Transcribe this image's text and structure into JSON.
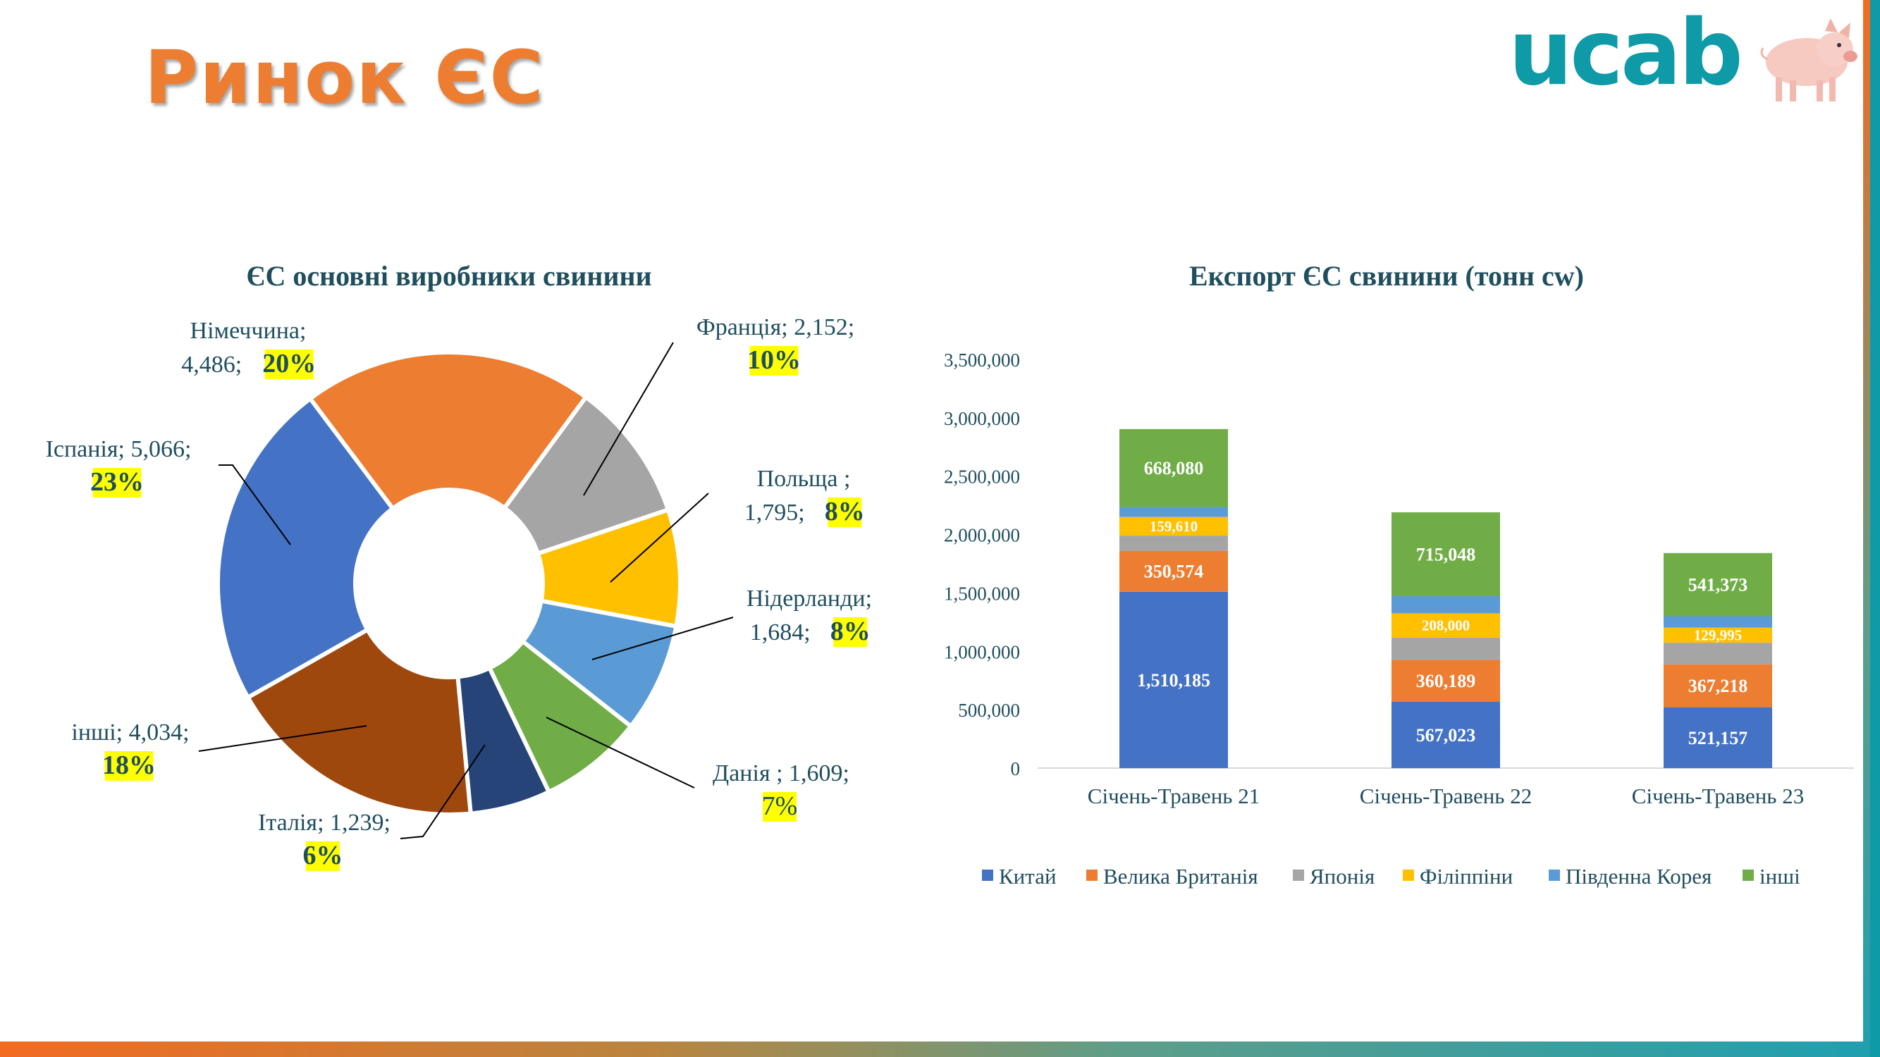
{
  "slide": {
    "title": "Ринок ЄС",
    "logo_text": "ucab",
    "logo_icon": "pig-icon"
  },
  "colors": {
    "accent": "#ED7D31",
    "teal": "#0E9AA7",
    "highlight": "#FFFF00",
    "text": "#1F4E5F"
  },
  "chart_data": [
    {
      "type": "pie",
      "title": "ЄС основні виробники свинини",
      "slices": [
        {
          "name": "Німеччина",
          "value_text": "4,486",
          "value": 4486,
          "pct": "20%",
          "color": "#ED7D31"
        },
        {
          "name": "Франція",
          "value_text": "2,152",
          "value": 2152,
          "pct": "10%",
          "color": "#A5A5A5"
        },
        {
          "name": "Польща ",
          "value_text": "1,795",
          "value": 1795,
          "pct": "8%",
          "color": "#FFC000"
        },
        {
          "name": "Нідерланди",
          "value_text": "1,684",
          "value": 1684,
          "pct": "8%",
          "color": "#5B9BD5"
        },
        {
          "name": "Данія ",
          "value_text": "1,609",
          "value": 1609,
          "pct": "7%",
          "color": "#70AD47"
        },
        {
          "name": "Італія",
          "value_text": "1,239",
          "value": 1239,
          "pct": "6%",
          "color": "#264478"
        },
        {
          "name": "інші",
          "value_text": "4,034",
          "value": 4034,
          "pct": "18%",
          "color": "#9E480E"
        },
        {
          "name": "Іспанія",
          "value_text": "5,066",
          "value": 5066,
          "pct": "23%",
          "color": "#4472C4"
        }
      ],
      "label_lines": [
        [
          "Німеччина;",
          "4,486;"
        ],
        [
          "Франція; 2,152;",
          ""
        ],
        [
          "Польща ;",
          "1,795;"
        ],
        [
          "Нідерланди;",
          "1,684;"
        ],
        [
          "Данія ; 1,609;",
          ""
        ],
        [
          "Італія; 1,239;",
          ""
        ],
        [
          "інші; 4,034;",
          ""
        ],
        [
          "Іспанія; 5,066;",
          ""
        ]
      ]
    },
    {
      "type": "bar",
      "stacked": true,
      "title": "Експорт ЄС свинини (тонн cw)",
      "categories": [
        "Січень-Травень 21",
        "Січень-Травень 22",
        "Січень-Травень 23"
      ],
      "ylim": [
        0,
        3500000
      ],
      "yticks": [
        "0",
        "500,000",
        "1,000,000",
        "1,500,000",
        "2,000,000",
        "2,500,000",
        "3,000,000",
        "3,500,000"
      ],
      "legend_position": "bottom",
      "series": [
        {
          "name": "Китай",
          "color": "#4472C4",
          "values": [
            1510185,
            567023,
            521157
          ],
          "labels": [
            "1,510,185",
            "567,023",
            "521,157"
          ]
        },
        {
          "name": "Велика Британія",
          "color": "#ED7D31",
          "values": [
            350574,
            360189,
            367218
          ],
          "labels": [
            "350,574",
            "360,189",
            "367,218"
          ]
        },
        {
          "name": "Японія",
          "color": "#A5A5A5",
          "values": [
            130000,
            190000,
            185000
          ],
          "labels": [
            "",
            "",
            ""
          ]
        },
        {
          "name": "Філіппіни",
          "color": "#FFC000",
          "values": [
            159610,
            208000,
            129995
          ],
          "labels": [
            "159,610",
            "208,000",
            "129,995"
          ]
        },
        {
          "name": "Південна Корея",
          "color": "#5B9BD5",
          "values": [
            85000,
            150000,
            97000
          ],
          "labels": [
            "",
            "",
            ""
          ]
        },
        {
          "name": "інші",
          "color": "#70AD47",
          "values": [
            668080,
            715048,
            541373
          ],
          "labels": [
            "668,080",
            "715,048",
            "541,373"
          ]
        }
      ]
    }
  ]
}
